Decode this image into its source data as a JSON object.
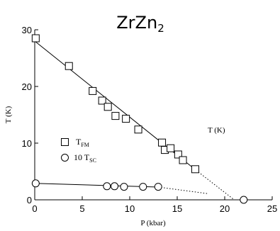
{
  "chart_data": {
    "type": "scatter",
    "title_main": "ZrZn",
    "title_sub": "2",
    "xlabel": "P (kbar)",
    "ylabel": "T (K)",
    "annotation": "T (K)",
    "xlim": [
      0,
      25
    ],
    "ylim": [
      0,
      30
    ],
    "xticks": [
      0,
      5,
      10,
      15,
      20,
      25
    ],
    "yticks": [
      0,
      10,
      20,
      30
    ],
    "grid": false,
    "legend_position": "center-left",
    "series": [
      {
        "name_main": "T",
        "name_sub": "FM",
        "marker": "square",
        "x": [
          0.1,
          3.6,
          6.1,
          7.1,
          7.7,
          8.5,
          9.6,
          10.9,
          13.4,
          13.7,
          14.3,
          15.1,
          15.6,
          16.9
        ],
        "y": [
          28.5,
          23.6,
          19.2,
          17.5,
          16.4,
          14.8,
          14.3,
          12.4,
          10.1,
          8.8,
          9.1,
          8.0,
          7.0,
          5.4
        ]
      },
      {
        "name_main": "10 T",
        "name_sub": "SC",
        "marker": "circle",
        "x": [
          0.1,
          7.6,
          8.4,
          9.4,
          11.4,
          13.0,
          22.0
        ],
        "y": [
          2.9,
          2.4,
          2.4,
          2.3,
          2.3,
          2.3,
          0.0
        ]
      }
    ],
    "fit_lines": [
      {
        "role": "fm-fit",
        "style": "solid",
        "x": [
          0,
          17.0
        ],
        "y": [
          28.0,
          5.2
        ]
      },
      {
        "role": "fm-extrapolation",
        "style": "dotted",
        "x": [
          17.0,
          21.0
        ],
        "y": [
          5.2,
          0
        ]
      },
      {
        "role": "sc-fit",
        "style": "solid",
        "x": [
          0,
          13.0
        ],
        "y": [
          2.9,
          2.25
        ]
      },
      {
        "role": "sc-extrapolation",
        "style": "dotted",
        "x": [
          13.0,
          18.2
        ],
        "y": [
          2.25,
          1.1
        ]
      }
    ]
  }
}
